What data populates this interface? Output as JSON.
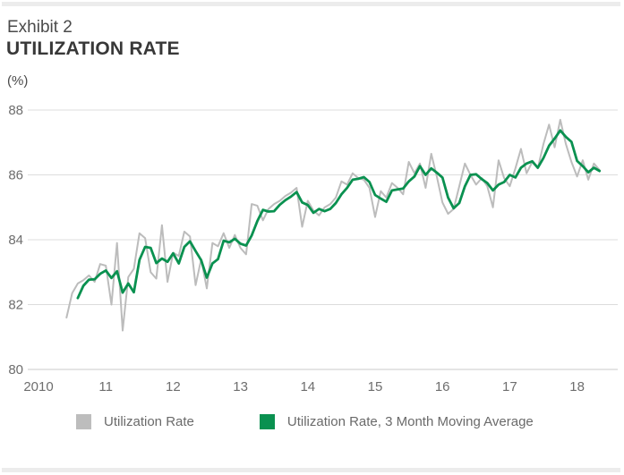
{
  "header": {
    "exhibit": "Exhibit 2",
    "title": "UTILIZATION RATE",
    "unit": "(%)"
  },
  "legend": {
    "items": [
      {
        "label": "Utilization Rate",
        "color": "#bdbdbd"
      },
      {
        "label": "Utilization Rate, 3 Month Moving Average",
        "color": "#0a9150"
      }
    ]
  },
  "colors": {
    "accent_green": "#0a9150",
    "series_gray": "#bcbcbc",
    "gridline": "#dcdcdc",
    "axis_line": "#c8c8c8",
    "tick_text": "#6e6e6e",
    "divider_bar": "#ececec"
  },
  "chart_data": {
    "type": "line",
    "title": "UTILIZATION RATE",
    "unit": "%",
    "frequency": "monthly",
    "x_start": "2010-06",
    "x_end": "2018-05",
    "ylim": [
      80,
      88
    ],
    "y_ticks": [
      88,
      86,
      84,
      82,
      80
    ],
    "x_tick_labels": [
      "2010",
      "11",
      "12",
      "13",
      "14",
      "15",
      "16",
      "17",
      "18"
    ],
    "grid": "horizontal",
    "legend_position": "bottom",
    "series": [
      {
        "name": "Utilization Rate",
        "color": "#bcbcbc",
        "stroke_width": 2,
        "start_month_offset": 0,
        "values": [
          81.6,
          82.35,
          82.65,
          82.75,
          82.9,
          82.7,
          83.25,
          83.2,
          82.0,
          83.9,
          81.2,
          82.85,
          83.1,
          84.2,
          84.05,
          83.0,
          82.8,
          84.45,
          82.7,
          83.6,
          83.5,
          84.25,
          84.1,
          82.6,
          83.4,
          82.5,
          83.9,
          83.8,
          84.2,
          83.75,
          84.15,
          83.75,
          83.55,
          85.1,
          85.05,
          84.6,
          84.95,
          85.1,
          85.2,
          85.35,
          85.45,
          85.6,
          84.4,
          85.2,
          84.9,
          84.75,
          85.0,
          85.1,
          85.3,
          85.8,
          85.7,
          86.05,
          85.9,
          85.85,
          85.6,
          84.7,
          85.5,
          85.3,
          85.75,
          85.6,
          85.4,
          86.4,
          86.05,
          86.35,
          85.6,
          86.65,
          85.95,
          85.15,
          84.8,
          84.95,
          85.65,
          86.35,
          86.0,
          85.7,
          85.9,
          85.65,
          85.0,
          86.45,
          85.9,
          85.65,
          86.2,
          86.8,
          86.05,
          86.4,
          86.2,
          86.95,
          87.55,
          86.85,
          87.7,
          86.95,
          86.4,
          85.95,
          86.45,
          85.85,
          86.35,
          86.15
        ]
      },
      {
        "name": "Utilization Rate, 3 Month Moving Average",
        "color": "#0a9150",
        "stroke_width": 2.8,
        "start_month_offset": 2,
        "derived_from": "3-month trailing moving average of Utilization Rate",
        "values": [
          82.2,
          82.58,
          82.77,
          82.78,
          82.95,
          83.05,
          82.82,
          83.03,
          82.37,
          82.65,
          82.38,
          83.38,
          83.78,
          83.75,
          83.28,
          83.42,
          83.32,
          83.58,
          83.27,
          83.78,
          83.95,
          83.65,
          83.37,
          82.83,
          83.27,
          83.4,
          83.97,
          83.92,
          84.03,
          83.88,
          83.82,
          84.13,
          84.57,
          84.92,
          84.87,
          84.88,
          85.08,
          85.22,
          85.33,
          85.47,
          85.15,
          85.07,
          84.83,
          84.95,
          84.88,
          84.95,
          85.13,
          85.4,
          85.6,
          85.85,
          85.88,
          85.93,
          85.78,
          85.38,
          85.27,
          85.17,
          85.52,
          85.55,
          85.58,
          85.8,
          85.95,
          86.27,
          86.0,
          86.2,
          86.07,
          85.92,
          85.3,
          84.97,
          85.13,
          85.65,
          86.0,
          86.02,
          85.87,
          85.75,
          85.52,
          85.7,
          85.78,
          86.0,
          85.92,
          86.22,
          86.35,
          86.42,
          86.22,
          86.52,
          86.9,
          87.12,
          87.37,
          87.17,
          87.02,
          86.43,
          86.27,
          86.08,
          86.22,
          86.12
        ]
      }
    ]
  }
}
